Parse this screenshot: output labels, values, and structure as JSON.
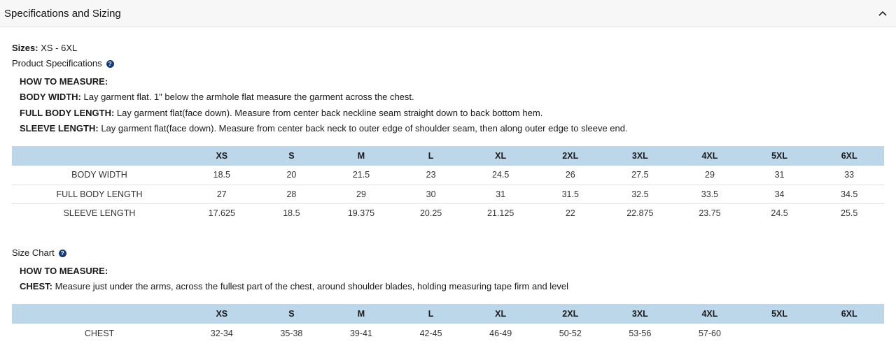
{
  "header": {
    "title": "Specifications and Sizing",
    "toggle_icon": "chevron-up-icon"
  },
  "sizes": {
    "label": "Sizes:",
    "value": "XS - 6XL"
  },
  "product_specs": {
    "title": "Product Specifications",
    "help_icon": "question-circle-icon",
    "how_to_measure": "HOW TO MEASURE:",
    "instructions": [
      {
        "term": "BODY WIDTH:",
        "text": "Lay garment flat. 1\" below the armhole flat measure the garment across the chest."
      },
      {
        "term": "FULL BODY LENGTH:",
        "text": "Lay garment flat(face down). Measure from center back neckline seam straight down to back bottom hem."
      },
      {
        "term": "SLEEVE LENGTH:",
        "text": "Lay garment flat(face down). Measure from center back neck to outer edge of shoulder seam, then along outer edge to sleeve end."
      }
    ],
    "table": {
      "columns": [
        "",
        "XS",
        "S",
        "M",
        "L",
        "XL",
        "2XL",
        "3XL",
        "4XL",
        "5XL",
        "6XL"
      ],
      "rows": [
        [
          "BODY WIDTH",
          "18.5",
          "20",
          "21.5",
          "23",
          "24.5",
          "26",
          "27.5",
          "29",
          "31",
          "33"
        ],
        [
          "FULL BODY LENGTH",
          "27",
          "28",
          "29",
          "30",
          "31",
          "31.5",
          "32.5",
          "33.5",
          "34",
          "34.5"
        ],
        [
          "SLEEVE LENGTH",
          "17.625",
          "18.5",
          "19.375",
          "20.25",
          "21.125",
          "22",
          "22.875",
          "23.75",
          "24.5",
          "25.5"
        ]
      ]
    }
  },
  "size_chart": {
    "title": "Size Chart",
    "help_icon": "question-circle-icon",
    "how_to_measure": "HOW TO MEASURE:",
    "instructions": [
      {
        "term": "CHEST:",
        "text": "Measure just under the arms, across the fullest part of the chest, around shoulder blades, holding measuring tape firm and level"
      }
    ],
    "table": {
      "columns": [
        "",
        "XS",
        "S",
        "M",
        "L",
        "XL",
        "2XL",
        "3XL",
        "4XL",
        "5XL",
        "6XL"
      ],
      "rows": [
        [
          "CHEST",
          "32-34",
          "35-38",
          "39-41",
          "42-45",
          "46-49",
          "50-52",
          "53-56",
          "57-60",
          "",
          ""
        ]
      ]
    }
  },
  "colors": {
    "table_header": "#bcd6ea",
    "help_icon": "#173a7a"
  }
}
